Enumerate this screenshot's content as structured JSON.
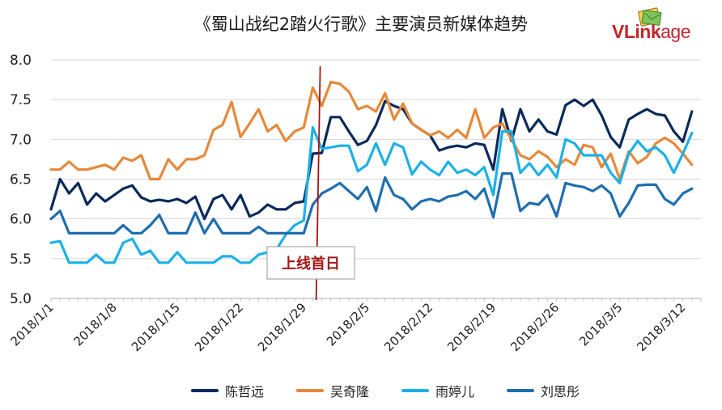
{
  "title": "《蜀山战纪2踏火行歌》主要演员新媒体趋势",
  "logo": {
    "brand_bold": "VLink",
    "brand_rest": "age"
  },
  "chart_data": {
    "type": "line",
    "title": "《蜀山战纪2踏火行歌》主要演员新媒体趋势",
    "xlabel": "",
    "ylabel": "",
    "ylim": [
      5.0,
      8.0
    ],
    "yticks": [
      "5.0",
      "5.5",
      "6.0",
      "6.5",
      "7.0",
      "7.5",
      "8.0"
    ],
    "ytick_values": [
      5.0,
      5.5,
      6.0,
      6.5,
      7.0,
      7.5,
      8.0
    ],
    "x_start_day": 0,
    "x_end_day": 72,
    "xticks": [
      {
        "label": "2018/1/1",
        "day": 0
      },
      {
        "label": "2018/1/8",
        "day": 7
      },
      {
        "label": "2018/1/15",
        "day": 14
      },
      {
        "label": "2018/1/22",
        "day": 21
      },
      {
        "label": "2018/1/29",
        "day": 28
      },
      {
        "label": "2018/2/5",
        "day": 35
      },
      {
        "label": "2018/2/12",
        "day": 42
      },
      {
        "label": "2018/2/19",
        "day": 49
      },
      {
        "label": "2018/2/26",
        "day": 56
      },
      {
        "label": "2018/3/5",
        "day": 63
      },
      {
        "label": "2018/3/12",
        "day": 70
      }
    ],
    "grid": true,
    "annotation": {
      "label": "上线首日",
      "day": 29.6,
      "color": "#a31515"
    },
    "legend_position": "bottom",
    "series": [
      {
        "name": "陈哲远",
        "color": "#0b2a5b",
        "values": [
          6.12,
          6.5,
          6.32,
          6.45,
          6.18,
          6.32,
          6.22,
          6.3,
          6.38,
          6.42,
          6.27,
          6.22,
          6.24,
          6.22,
          6.25,
          6.2,
          6.28,
          6.0,
          6.25,
          6.3,
          6.12,
          6.3,
          6.03,
          6.08,
          6.18,
          6.12,
          6.12,
          6.2,
          6.22,
          6.82,
          6.83,
          7.28,
          7.28,
          7.1,
          6.93,
          6.98,
          7.18,
          7.48,
          7.42,
          7.38,
          7.2,
          7.12,
          7.05,
          6.86,
          6.9,
          6.92,
          6.9,
          6.95,
          6.93,
          6.62,
          7.38,
          6.98,
          7.38,
          7.1,
          7.25,
          7.1,
          7.06,
          7.43,
          7.5,
          7.42,
          7.5,
          7.3,
          7.03,
          6.9,
          7.25,
          7.32,
          7.38,
          7.32,
          7.3,
          7.1,
          6.97,
          7.35
        ]
      },
      {
        "name": "吴奇隆",
        "color": "#e6893a",
        "values": [
          6.62,
          6.62,
          6.72,
          6.62,
          6.62,
          6.65,
          6.68,
          6.62,
          6.77,
          6.73,
          6.8,
          6.5,
          6.5,
          6.75,
          6.62,
          6.75,
          6.75,
          6.8,
          7.12,
          7.18,
          7.47,
          7.03,
          7.2,
          7.38,
          7.1,
          7.18,
          6.98,
          7.1,
          7.15,
          7.65,
          7.42,
          7.72,
          7.7,
          7.6,
          7.38,
          7.42,
          7.35,
          7.58,
          7.25,
          7.45,
          7.2,
          7.12,
          7.05,
          7.1,
          7.02,
          7.12,
          7.02,
          7.38,
          7.02,
          7.15,
          7.2,
          7.0,
          6.8,
          6.75,
          6.85,
          6.78,
          6.65,
          6.75,
          6.68,
          6.93,
          6.9,
          6.65,
          6.82,
          6.5,
          6.85,
          6.7,
          6.78,
          6.95,
          7.02,
          6.95,
          6.82,
          6.68
        ]
      },
      {
        "name": "雨婷儿",
        "color": "#1cb1e6",
        "values": [
          5.7,
          5.72,
          5.45,
          5.45,
          5.45,
          5.55,
          5.45,
          5.45,
          5.7,
          5.75,
          5.55,
          5.6,
          5.45,
          5.45,
          5.58,
          5.45,
          5.45,
          5.45,
          5.45,
          5.53,
          5.53,
          5.45,
          5.45,
          5.55,
          5.58,
          5.62,
          5.8,
          5.92,
          5.98,
          7.15,
          6.88,
          6.9,
          6.92,
          6.92,
          6.6,
          6.68,
          6.95,
          6.68,
          6.95,
          6.9,
          6.56,
          6.72,
          6.62,
          6.55,
          6.72,
          6.58,
          6.62,
          6.55,
          6.65,
          6.3,
          7.1,
          7.1,
          6.58,
          6.7,
          6.55,
          6.68,
          6.52,
          7.0,
          6.95,
          6.8,
          6.8,
          6.8,
          6.58,
          6.45,
          6.82,
          6.98,
          6.85,
          6.9,
          6.8,
          6.58,
          6.82,
          7.08
        ]
      },
      {
        "name": "刘思彤",
        "color": "#1f6eb0",
        "values": [
          6.0,
          6.1,
          5.82,
          5.82,
          5.82,
          5.82,
          5.82,
          5.82,
          5.92,
          5.82,
          5.82,
          5.92,
          6.05,
          5.82,
          5.82,
          5.82,
          6.08,
          5.82,
          6.0,
          5.82,
          5.82,
          5.82,
          5.82,
          5.9,
          5.82,
          5.82,
          5.82,
          5.82,
          5.82,
          6.18,
          6.32,
          6.38,
          6.45,
          6.35,
          6.25,
          6.4,
          6.1,
          6.52,
          6.3,
          6.25,
          6.12,
          6.22,
          6.25,
          6.22,
          6.28,
          6.3,
          6.35,
          6.25,
          6.38,
          6.02,
          6.57,
          6.57,
          6.1,
          6.2,
          6.18,
          6.3,
          6.03,
          6.45,
          6.42,
          6.4,
          6.35,
          6.42,
          6.32,
          6.03,
          6.2,
          6.42,
          6.43,
          6.43,
          6.25,
          6.18,
          6.32,
          6.38
        ]
      }
    ]
  }
}
